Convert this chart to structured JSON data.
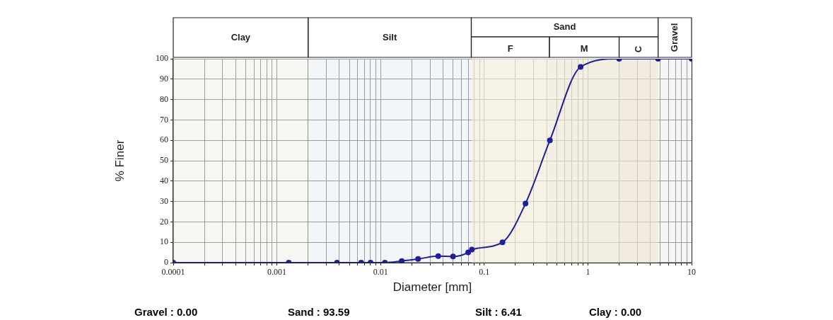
{
  "chart_data": {
    "type": "line",
    "xlabel": "Diameter [mm]",
    "ylabel": "% Finer",
    "log": "x",
    "grid": true,
    "legend": false,
    "marker": "circle",
    "line_style": "solid",
    "xlim": [
      0.0001,
      10
    ],
    "ylim": [
      0,
      100
    ],
    "xticks": [
      0.0001,
      {
        "value": 0.0002,
        "label": null
      },
      {
        "value": 0.0003,
        "label": null
      },
      {
        "value": 0.0004,
        "label": null
      },
      {
        "value": 0.0005,
        "label": null
      },
      {
        "value": 0.0006,
        "label": null
      },
      {
        "value": 0.0007,
        "label": null
      },
      {
        "value": 0.0008,
        "label": null
      },
      {
        "value": 0.0009,
        "label": null
      },
      0.001,
      {
        "value": 0.002,
        "label": null
      },
      {
        "value": 0.003,
        "label": null
      },
      {
        "value": 0.004,
        "label": null
      },
      {
        "value": 0.005,
        "label": null
      },
      {
        "value": 0.006,
        "label": null
      },
      {
        "value": 0.007,
        "label": null
      },
      {
        "value": 0.008,
        "label": null
      },
      {
        "value": 0.009,
        "label": null
      },
      0.01,
      {
        "value": 0.02,
        "label": null
      },
      {
        "value": 0.03,
        "label": null
      },
      {
        "value": 0.04,
        "label": null
      },
      {
        "value": 0.05,
        "label": null
      },
      {
        "value": 0.06,
        "label": null
      },
      {
        "value": 0.07,
        "label": null
      },
      {
        "value": 0.08,
        "label": null
      },
      {
        "value": 0.09,
        "label": null
      },
      0.1,
      {
        "value": 0.2,
        "label": null
      },
      {
        "value": 0.3,
        "label": null
      },
      {
        "value": 0.4,
        "label": null
      },
      {
        "value": 0.5,
        "label": null
      },
      {
        "value": 0.6,
        "label": null
      },
      {
        "value": 0.7,
        "label": null
      },
      {
        "value": 0.8,
        "label": null
      },
      {
        "value": 0.9,
        "label": null
      },
      1,
      {
        "value": 2,
        "label": null
      },
      {
        "value": 3,
        "label": null
      },
      {
        "value": 4,
        "label": null
      },
      {
        "value": 5,
        "label": null
      },
      {
        "value": 6,
        "label": null
      },
      {
        "value": 7,
        "label": null
      },
      {
        "value": 8,
        "label": null
      },
      {
        "value": 9,
        "label": null
      },
      10
    ],
    "yticks": [
      0,
      10,
      20,
      30,
      40,
      50,
      60,
      70,
      80,
      90,
      100
    ],
    "series": [
      {
        "color": "#1f1f99",
        "x": [
          0.0001,
          0.0013,
          0.0038,
          0.0065,
          0.008,
          0.011,
          0.016,
          0.023,
          0.036,
          0.05,
          0.07,
          0.076,
          0.15,
          0.25,
          0.43,
          0.85,
          2,
          4.75,
          10
        ],
        "values": [
          0,
          0,
          0,
          0,
          0,
          0,
          0.8,
          1.8,
          3.2,
          3,
          5,
          6.4,
          10,
          29,
          60,
          96,
          100,
          100,
          100
        ]
      }
    ],
    "bands": [
      {
        "axis": "x",
        "from": 0.0001,
        "to": 0.002,
        "label": "Clay",
        "color": "#f3f0e6"
      },
      {
        "axis": "x",
        "from": 0.002,
        "to": 0.075,
        "label": "Silt",
        "color": "#eaf0f3"
      },
      {
        "axis": "x",
        "from": 0.075,
        "to": 4.75,
        "label": "Sand",
        "color": "#f6f2e2"
      },
      {
        "axis": "x",
        "from": 0.075,
        "to": 0.425,
        "label": "F",
        "color": "#f3efe0"
      },
      {
        "axis": "x",
        "from": 0.425,
        "to": 2,
        "label": "M",
        "color": "#efeadb"
      },
      {
        "axis": "x",
        "from": 2,
        "to": 4.75,
        "label": "C",
        "color": "#ebe5d5"
      },
      {
        "axis": "x",
        "from": 4.75,
        "to": 10,
        "label": "Gravel",
        "color": "#eeeeee"
      }
    ],
    "annotations": [
      "Gravel : 0.00",
      "Sand : 93.59",
      "Silt : 6.41",
      "Clay : 0.00"
    ]
  }
}
